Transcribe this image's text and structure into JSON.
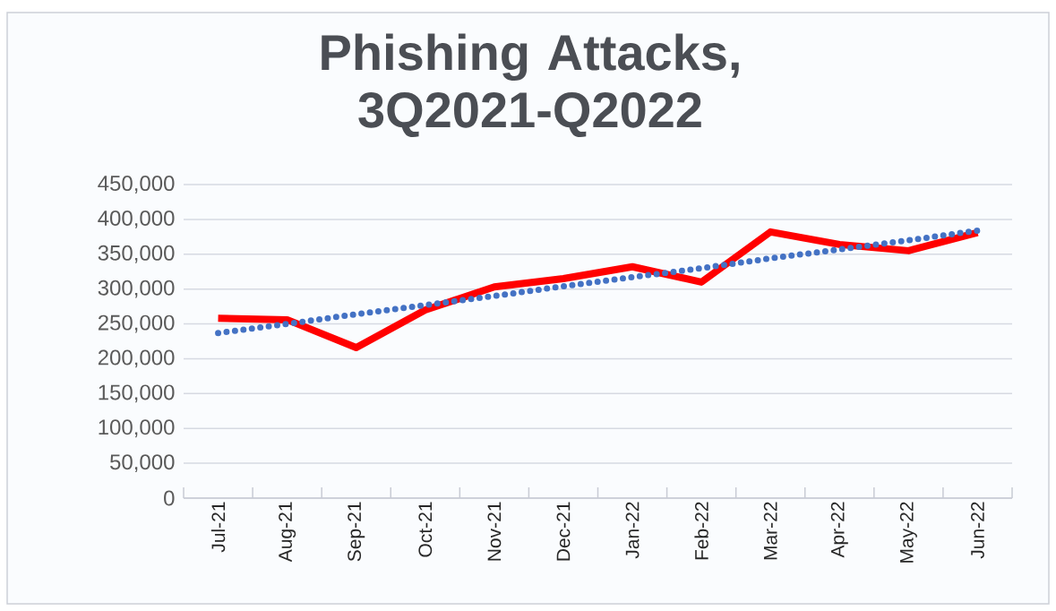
{
  "chart_data": {
    "type": "line",
    "title": "Phishing Attacks, 3Q2021-Q2022",
    "categories": [
      "Jul-21",
      "Aug-21",
      "Sep-21",
      "Oct-21",
      "Nov-21",
      "Dec-21",
      "Jan-22",
      "Feb-22",
      "Mar-22",
      "Apr-22",
      "May-22",
      "Jun-22"
    ],
    "series": [
      {
        "color": "#ff0000",
        "values": [
          258000,
          256000,
          216000,
          270000,
          303000,
          315000,
          332000,
          310000,
          382000,
          364000,
          355000,
          381000
        ]
      },
      {
        "color": "#4472c4",
        "line_style": "dotted",
        "values": [
          237000,
          250000,
          264000,
          277000,
          290000,
          304000,
          317000,
          330000,
          344000,
          357000,
          370000,
          384000
        ]
      }
    ],
    "ylim": [
      0,
      450000
    ],
    "yticks": [
      {
        "value": 0,
        "label": "0"
      },
      {
        "value": 50000,
        "label": "50,000"
      },
      {
        "value": 100000,
        "label": "100,000"
      },
      {
        "value": 150000,
        "label": "150,000"
      },
      {
        "value": 200000,
        "label": "200,000"
      },
      {
        "value": 250000,
        "label": "250,000"
      },
      {
        "value": 300000,
        "label": "300,000"
      },
      {
        "value": 350000,
        "label": "350,000"
      },
      {
        "value": 400000,
        "label": "400,000"
      },
      {
        "value": 450000,
        "label": "450,000"
      }
    ],
    "grid": "y",
    "legend": false,
    "marker": "none",
    "line_style": "solid"
  }
}
